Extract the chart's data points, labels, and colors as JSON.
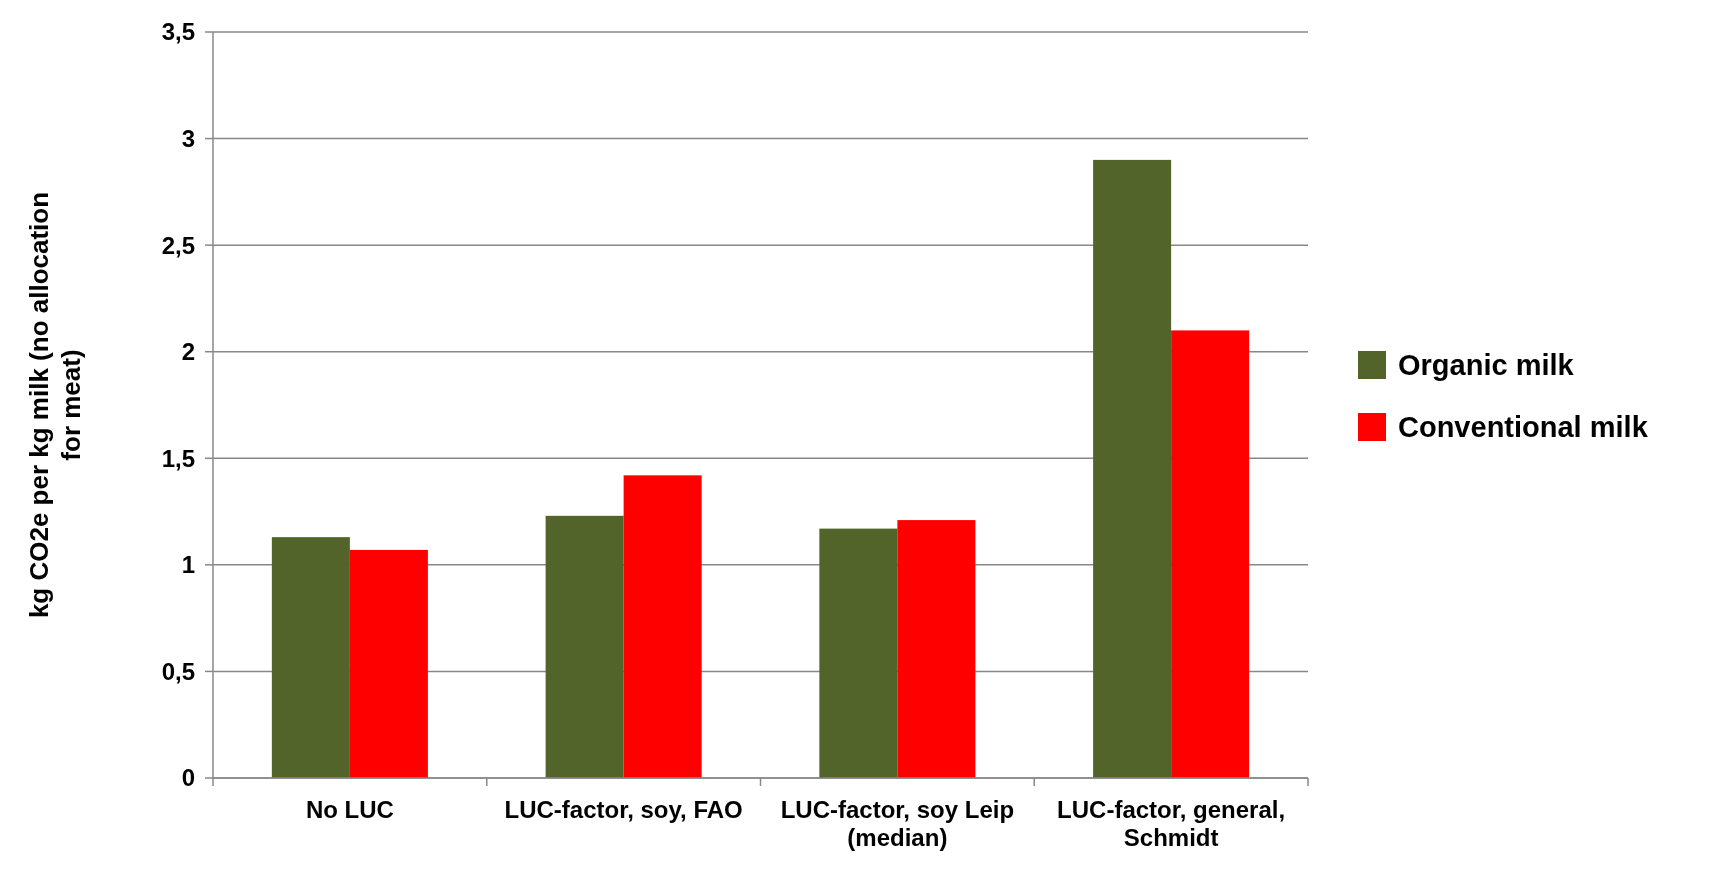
{
  "chart_data": {
    "type": "bar",
    "ylabel": "kg CO2e per kg milk (no allocation for meat)",
    "categories": [
      "No LUC",
      "LUC-factor, soy, FAO",
      "LUC-factor, soy Leip (median)",
      "LUC-factor, general, Schmidt"
    ],
    "series": [
      {
        "name": "Organic milk",
        "color": "#53642a",
        "values": [
          1.13,
          1.23,
          1.17,
          2.9
        ]
      },
      {
        "name": "Conventional milk",
        "color": "#ff0000",
        "values": [
          1.07,
          1.42,
          1.21,
          2.1
        ]
      }
    ],
    "ylim": [
      0,
      3.5
    ],
    "yticks": [
      0,
      {
        "value": 0.5,
        "label": "0,5"
      },
      1,
      {
        "value": 1.5,
        "label": "1,5"
      },
      2,
      {
        "value": 2.5,
        "label": "2,5"
      },
      3,
      {
        "value": 3.5,
        "label": "3,5"
      }
    ],
    "grid": "y",
    "legend": "right"
  }
}
